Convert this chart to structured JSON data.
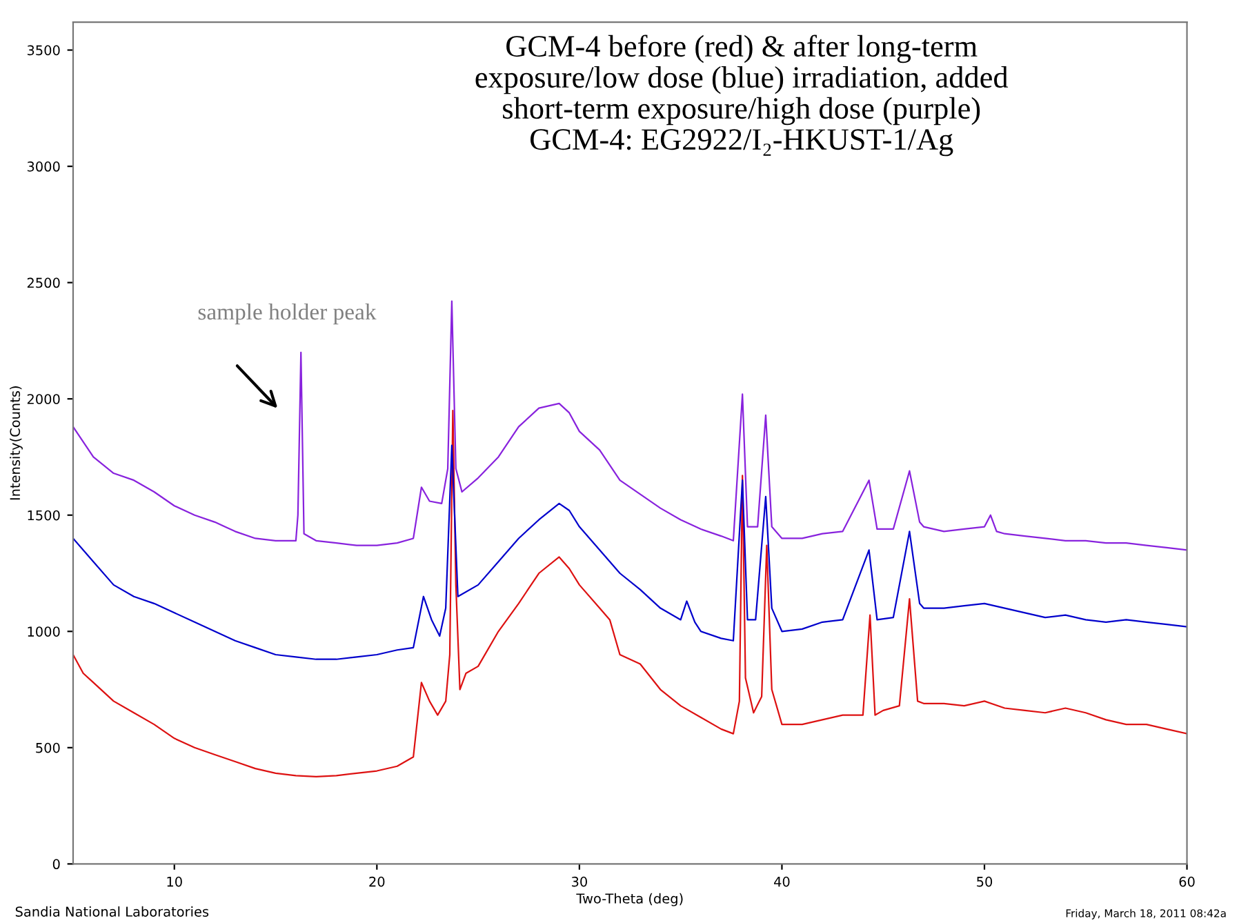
{
  "chart_data": {
    "type": "line",
    "title": "GCM-4 before (red) & after long-term\nexposure/low dose (blue) irradiation, added\nshort-term exposure/high dose (purple)\nGCM-4: EG2922/I₂-HKUST-1/Ag",
    "xlabel": "Two-Theta (deg)",
    "ylabel": "Intensity(Counts)",
    "xlim": [
      5,
      60
    ],
    "ylim": [
      0,
      3620
    ],
    "xticks": [
      10,
      20,
      30,
      40,
      50,
      60
    ],
    "yticks": [
      0,
      500,
      1000,
      1500,
      2000,
      2500,
      3000,
      3500
    ],
    "grid": false,
    "legend": false,
    "marker": "none",
    "line_style": "solid",
    "annotations": [
      "sample holder peak",
      "Sandia National Laboratories",
      "Friday, March 18, 2011 08:42a"
    ],
    "series": [
      {
        "color": "#dd1111",
        "x": [
          5,
          5.5,
          6,
          7,
          8,
          9,
          10,
          11,
          12,
          13,
          14,
          15,
          16,
          17,
          18,
          19,
          20,
          21,
          21.8,
          22.2,
          22.6,
          23,
          23.4,
          23.6,
          23.75,
          23.9,
          24.1,
          24.4,
          25,
          26,
          27,
          28,
          29,
          29.5,
          30,
          31,
          31.5,
          32,
          33,
          34,
          35,
          36,
          37,
          37.6,
          37.9,
          38.05,
          38.2,
          38.6,
          39,
          39.25,
          39.5,
          40,
          41,
          42,
          43,
          44,
          44.35,
          44.6,
          45,
          45.8,
          46.3,
          46.7,
          47,
          48,
          49,
          50,
          51,
          52,
          53,
          54,
          55,
          56,
          57,
          58,
          59,
          60
        ],
        "values": [
          900,
          820,
          780,
          700,
          650,
          600,
          540,
          500,
          470,
          440,
          410,
          390,
          380,
          375,
          380,
          390,
          400,
          420,
          460,
          780,
          700,
          640,
          700,
          900,
          1950,
          1200,
          750,
          820,
          850,
          1000,
          1120,
          1250,
          1320,
          1270,
          1200,
          1100,
          1050,
          900,
          860,
          750,
          680,
          630,
          580,
          560,
          700,
          1670,
          800,
          650,
          720,
          1370,
          750,
          600,
          600,
          620,
          640,
          640,
          1070,
          640,
          660,
          680,
          1140,
          700,
          690,
          690,
          680,
          700,
          670,
          660,
          650,
          670,
          650,
          620,
          600,
          600,
          580,
          560
        ]
      },
      {
        "color": "#0000cc",
        "x": [
          5,
          6,
          7,
          8,
          9,
          10,
          11,
          12,
          13,
          14,
          15,
          16,
          17,
          18,
          19,
          20,
          21,
          21.8,
          22.3,
          22.7,
          23.1,
          23.4,
          23.7,
          24,
          25,
          26,
          27,
          28,
          29,
          29.5,
          30,
          31,
          32,
          33,
          34,
          35,
          35.3,
          35.7,
          36,
          37,
          37.6,
          38.05,
          38.3,
          38.7,
          39.2,
          39.5,
          40,
          41,
          42,
          43,
          44.3,
          44.7,
          45.5,
          46.3,
          46.8,
          47,
          48,
          49,
          50,
          51,
          52,
          53,
          54,
          55,
          56,
          57,
          58,
          59,
          60
        ],
        "values": [
          1400,
          1300,
          1200,
          1150,
          1120,
          1080,
          1040,
          1000,
          960,
          930,
          900,
          890,
          880,
          880,
          890,
          900,
          920,
          930,
          1150,
          1050,
          980,
          1100,
          1800,
          1150,
          1200,
          1300,
          1400,
          1480,
          1550,
          1520,
          1450,
          1350,
          1250,
          1180,
          1100,
          1050,
          1130,
          1040,
          1000,
          970,
          960,
          1650,
          1050,
          1050,
          1580,
          1100,
          1000,
          1010,
          1040,
          1050,
          1350,
          1050,
          1060,
          1430,
          1120,
          1100,
          1100,
          1110,
          1120,
          1100,
          1080,
          1060,
          1070,
          1050,
          1040,
          1050,
          1040,
          1030,
          1020
        ]
      },
      {
        "color": "#8822dd",
        "x": [
          5,
          6,
          7,
          8,
          9,
          10,
          11,
          12,
          13,
          14,
          15,
          16,
          16.1,
          16.25,
          16.4,
          17,
          18,
          19,
          20,
          21,
          21.8,
          22.2,
          22.6,
          23.2,
          23.5,
          23.7,
          23.9,
          24.2,
          25,
          26,
          27,
          28,
          29,
          29.5,
          30,
          31,
          32,
          33,
          34,
          35,
          36,
          37,
          37.6,
          38.05,
          38.3,
          38.8,
          39.2,
          39.5,
          40,
          41,
          42,
          43,
          44.3,
          44.7,
          45.5,
          46.3,
          46.8,
          47,
          48,
          49,
          50,
          50.3,
          50.6,
          51,
          52,
          53,
          54,
          55,
          56,
          57,
          58,
          59,
          60
        ],
        "values": [
          1880,
          1750,
          1680,
          1650,
          1600,
          1540,
          1500,
          1470,
          1430,
          1400,
          1390,
          1390,
          1500,
          2200,
          1420,
          1390,
          1380,
          1370,
          1370,
          1380,
          1400,
          1620,
          1560,
          1550,
          1700,
          2420,
          1700,
          1600,
          1660,
          1750,
          1880,
          1960,
          1980,
          1940,
          1860,
          1780,
          1650,
          1590,
          1530,
          1480,
          1440,
          1410,
          1390,
          2020,
          1450,
          1450,
          1930,
          1450,
          1400,
          1400,
          1420,
          1430,
          1650,
          1440,
          1440,
          1690,
          1470,
          1450,
          1430,
          1440,
          1450,
          1500,
          1430,
          1420,
          1410,
          1400,
          1390,
          1390,
          1380,
          1380,
          1370,
          1360,
          1350
        ]
      }
    ]
  }
}
